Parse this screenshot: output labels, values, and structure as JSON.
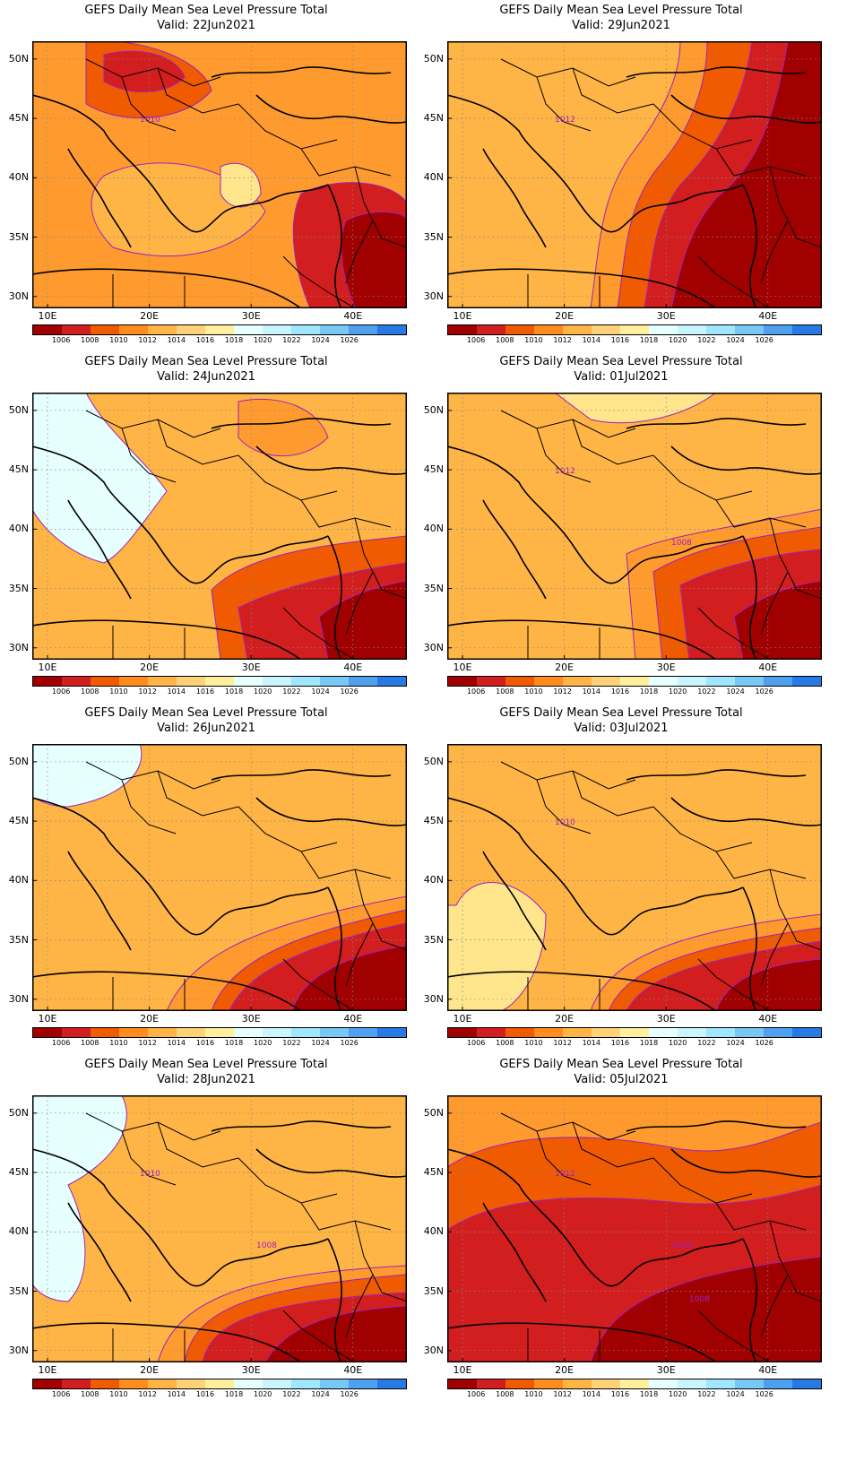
{
  "colorbar": {
    "colors": [
      "#a00000",
      "#d21e1e",
      "#f05a00",
      "#ff8c1e",
      "#ffb446",
      "#ffd278",
      "#fff0a0",
      "#e6ffff",
      "#c8f5ff",
      "#a0e6ff",
      "#78c8f5",
      "#50a0f0",
      "#2878e6"
    ],
    "labels": [
      "1006",
      "1008",
      "1010",
      "1012",
      "1014",
      "1016",
      "1018",
      "1020",
      "1022",
      "1024",
      "1026"
    ]
  },
  "axes": {
    "lat_labels": [
      "50N",
      "45N",
      "40N",
      "35N",
      "30N"
    ],
    "lon_labels": [
      "10E",
      "20E",
      "30E",
      "40E"
    ]
  },
  "panels": [
    {
      "title": "GEFS Daily Mean Sea Level Pressure Total",
      "valid": "Valid: 22Jun2021",
      "contour_labels": [
        "1010"
      ],
      "zones": [
        {
          "level": "1012"
        },
        {
          "level": "1014"
        },
        {
          "level": "1010"
        },
        {
          "level": "1008"
        },
        {
          "level": "1016"
        },
        {
          "level": "1008"
        },
        {
          "level": "1006"
        }
      ]
    },
    {
      "title": "GEFS Daily Mean Sea Level Pressure Total",
      "valid": "Valid: 29Jun2021",
      "contour_labels": [
        "1012"
      ],
      "zones": [
        {
          "level": "1014"
        },
        {
          "level": "1012"
        },
        {
          "level": "1010"
        },
        {
          "level": "1008"
        },
        {
          "level": "1006"
        }
      ]
    },
    {
      "title": "GEFS Daily Mean Sea Level Pressure Total",
      "valid": "Valid: 24Jun2021",
      "contour_labels": [],
      "zones": [
        {
          "level": "1014"
        },
        {
          "level": "1018"
        },
        {
          "level": "1012"
        },
        {
          "level": "1010"
        },
        {
          "level": "1008"
        },
        {
          "level": "1006"
        }
      ]
    },
    {
      "title": "GEFS Daily Mean Sea Level Pressure Total",
      "valid": "Valid: 01Jul2021",
      "contour_labels": [
        "1012",
        "1008"
      ],
      "zones": [
        {
          "level": "1014"
        },
        {
          "level": "1016"
        },
        {
          "level": "1012"
        },
        {
          "level": "1010"
        },
        {
          "level": "1008"
        },
        {
          "level": "1006"
        }
      ]
    },
    {
      "title": "GEFS Daily Mean Sea Level Pressure Total",
      "valid": "Valid: 26Jun2021",
      "contour_labels": [],
      "zones": [
        {
          "level": "1014"
        },
        {
          "level": "1018"
        },
        {
          "level": "1012"
        },
        {
          "level": "1010"
        },
        {
          "level": "1008"
        },
        {
          "level": "1006"
        }
      ]
    },
    {
      "title": "GEFS Daily Mean Sea Level Pressure Total",
      "valid": "Valid: 03Jul2021",
      "contour_labels": [
        "1010"
      ],
      "zones": [
        {
          "level": "1014"
        },
        {
          "level": "1016"
        },
        {
          "level": "1012"
        },
        {
          "level": "1010"
        },
        {
          "level": "1008"
        },
        {
          "level": "1006"
        }
      ]
    },
    {
      "title": "GEFS Daily Mean Sea Level Pressure Total",
      "valid": "Valid: 28Jun2021",
      "contour_labels": [
        "1010",
        "1008"
      ],
      "zones": [
        {
          "level": "1014"
        },
        {
          "level": "1018"
        },
        {
          "level": "1012"
        },
        {
          "level": "1010"
        },
        {
          "level": "1008"
        },
        {
          "level": "1006"
        }
      ]
    },
    {
      "title": "GEFS Daily Mean Sea Level Pressure Total",
      "valid": "Valid: 05Jul2021",
      "contour_labels": [
        "1012",
        "1008",
        "1008"
      ],
      "zones": [
        {
          "level": "1012"
        },
        {
          "level": "1010"
        },
        {
          "level": "1008"
        },
        {
          "level": "1006"
        }
      ]
    }
  ]
}
